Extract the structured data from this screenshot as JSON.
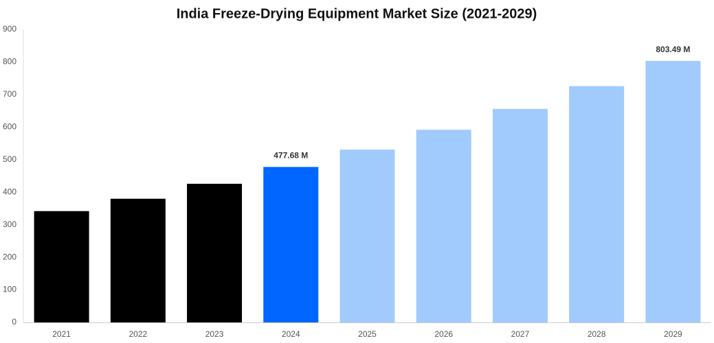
{
  "chart_data": {
    "type": "bar",
    "title": "India Freeze-Drying Equipment Market Size (2021-2029)",
    "categories": [
      "2021",
      "2022",
      "2023",
      "2024",
      "2025",
      "2026",
      "2027",
      "2028",
      "2029"
    ],
    "values": [
      342,
      380,
      426,
      477.68,
      531,
      592,
      656,
      726,
      803.49
    ],
    "value_labels": [
      null,
      null,
      null,
      "477.68 M",
      null,
      null,
      null,
      null,
      "803.49 M"
    ],
    "colors": [
      "#000000",
      "#000000",
      "#000000",
      "#0066ff",
      "#a0cbfc",
      "#a0cbfc",
      "#a0cbfc",
      "#a0cbfc",
      "#a0cbfc"
    ],
    "ylim": [
      0,
      900
    ],
    "yticks": [
      0,
      100,
      200,
      300,
      400,
      500,
      600,
      700,
      800,
      900
    ],
    "grid": false
  }
}
